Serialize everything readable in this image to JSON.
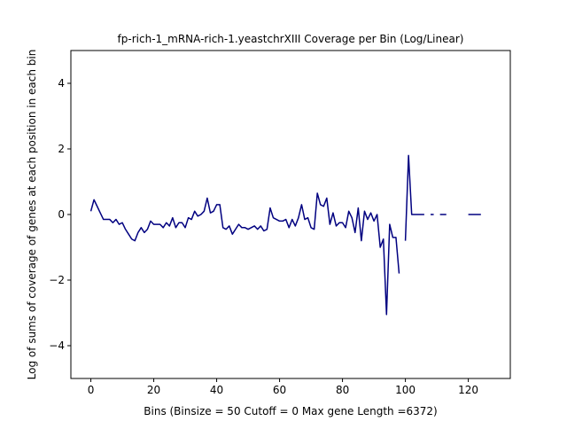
{
  "chart_data": {
    "type": "line",
    "title": "fp-rich-1_mRNA-rich-1.yeastchrXIII Coverage per Bin (Log/Linear)",
    "x_label": "Bins  (Binsize = 50 Cutoff = 0 Max gene Length =6372)",
    "y_label": "Log of sums of coverage of genes at each position in each bin",
    "x": [
      0,
      1,
      2,
      3,
      4,
      5,
      6,
      7,
      8,
      9,
      10,
      11,
      12,
      13,
      14,
      15,
      16,
      17,
      18,
      19,
      20,
      21,
      22,
      23,
      24,
      25,
      26,
      27,
      28,
      29,
      30,
      31,
      32,
      33,
      34,
      35,
      36,
      37,
      38,
      39,
      40,
      41,
      42,
      43,
      44,
      45,
      46,
      47,
      48,
      49,
      50,
      51,
      52,
      53,
      54,
      55,
      56,
      57,
      58,
      59,
      60,
      61,
      62,
      63,
      64,
      65,
      66,
      67,
      68,
      69,
      70,
      71,
      72,
      73,
      74,
      75,
      76,
      77,
      78,
      79,
      80,
      81,
      82,
      83,
      84,
      85,
      86,
      87,
      88,
      89,
      90,
      91,
      92,
      93,
      94,
      95,
      96,
      97,
      98,
      99,
      100,
      101,
      102,
      103,
      104,
      105,
      106,
      107,
      108,
      109,
      110,
      111,
      112,
      113,
      114,
      115,
      116,
      117,
      118,
      119,
      120,
      121,
      122,
      123,
      124,
      125,
      126,
      127
    ],
    "series": [
      {
        "color": "#000080",
        "values": [
          0.1,
          0.45,
          0.25,
          0.05,
          -0.15,
          -0.15,
          -0.15,
          -0.25,
          -0.15,
          -0.3,
          -0.25,
          -0.45,
          -0.6,
          -0.75,
          -0.8,
          -0.55,
          -0.4,
          -0.55,
          -0.45,
          -0.2,
          -0.3,
          -0.3,
          -0.3,
          -0.4,
          -0.25,
          -0.35,
          -0.1,
          -0.4,
          -0.25,
          -0.25,
          -0.4,
          -0.1,
          -0.15,
          0.1,
          -0.05,
          0.0,
          0.1,
          0.5,
          0.05,
          0.1,
          0.3,
          0.3,
          -0.4,
          -0.45,
          -0.35,
          -0.6,
          -0.45,
          -0.3,
          -0.4,
          -0.4,
          -0.45,
          -0.4,
          -0.35,
          -0.45,
          -0.35,
          -0.5,
          -0.45,
          0.2,
          -0.1,
          -0.15,
          -0.2,
          -0.2,
          -0.15,
          -0.4,
          -0.15,
          -0.35,
          -0.1,
          0.3,
          -0.15,
          -0.1,
          -0.4,
          -0.45,
          0.65,
          0.3,
          0.25,
          0.5,
          -0.3,
          0.05,
          -0.35,
          -0.25,
          -0.25,
          -0.4,
          0.1,
          -0.1,
          -0.55,
          0.2,
          -0.8,
          0.1,
          -0.15,
          0.05,
          -0.2,
          0.0,
          -1.0,
          -0.75,
          -3.05,
          -0.3,
          -0.7,
          -0.7,
          -1.8,
          null,
          -0.8,
          1.8,
          0,
          0,
          0,
          0,
          0,
          null,
          0,
          0,
          null,
          0,
          0,
          0,
          null,
          null,
          null,
          null,
          0,
          null,
          0,
          0,
          0,
          0,
          0,
          null,
          null,
          null
        ]
      }
    ],
    "xlim": [
      -6.35,
      133.35
    ],
    "ylim": [
      -5,
      5
    ],
    "xticks": [
      0,
      20,
      40,
      60,
      80,
      100,
      120
    ],
    "yticks": [
      {
        "value": -4,
        "label": "−4"
      },
      {
        "value": -2,
        "label": "−2"
      },
      0,
      2,
      4
    ]
  }
}
